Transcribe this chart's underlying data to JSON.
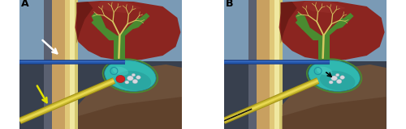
{
  "fig_width": 5.0,
  "fig_height": 1.6,
  "bg_upper": "#7a9ab5",
  "bg_lower": "#3a4555",
  "skin_dark_outer": "#8a7a6a",
  "skin_tan": "#c8a060",
  "skin_light": "#e0c878",
  "skin_white": "#f0e8a0",
  "liver_main": "#8b2520",
  "liver_dark": "#5a1510",
  "liver_highlight": "#a03530",
  "bile_green": "#4a8a30",
  "bile_light": "#5aaa40",
  "vein_color": "#d4c860",
  "gb_main": "#30b8b0",
  "gb_dark": "#208888",
  "gb_light": "#60d8d0",
  "stone_red": "#cc2020",
  "stone_gray": "#b0b0b8",
  "stone_white": "#d8d8e0",
  "tube_blue_dark": "#1a3a80",
  "tube_blue_mid": "#2255aa",
  "tube_blue_light": "#4477cc",
  "tube_yellow_dark": "#a09010",
  "tube_yellow_mid": "#c8b830",
  "tube_yellow_light": "#e8d850",
  "abdom_brown": "#7a5535",
  "abdom_dark": "#553520",
  "arrow_white": "#ffffff",
  "arrow_yellow": "#e0e000",
  "arrow_black": "#000000",
  "label_A": "A",
  "label_B": "B"
}
